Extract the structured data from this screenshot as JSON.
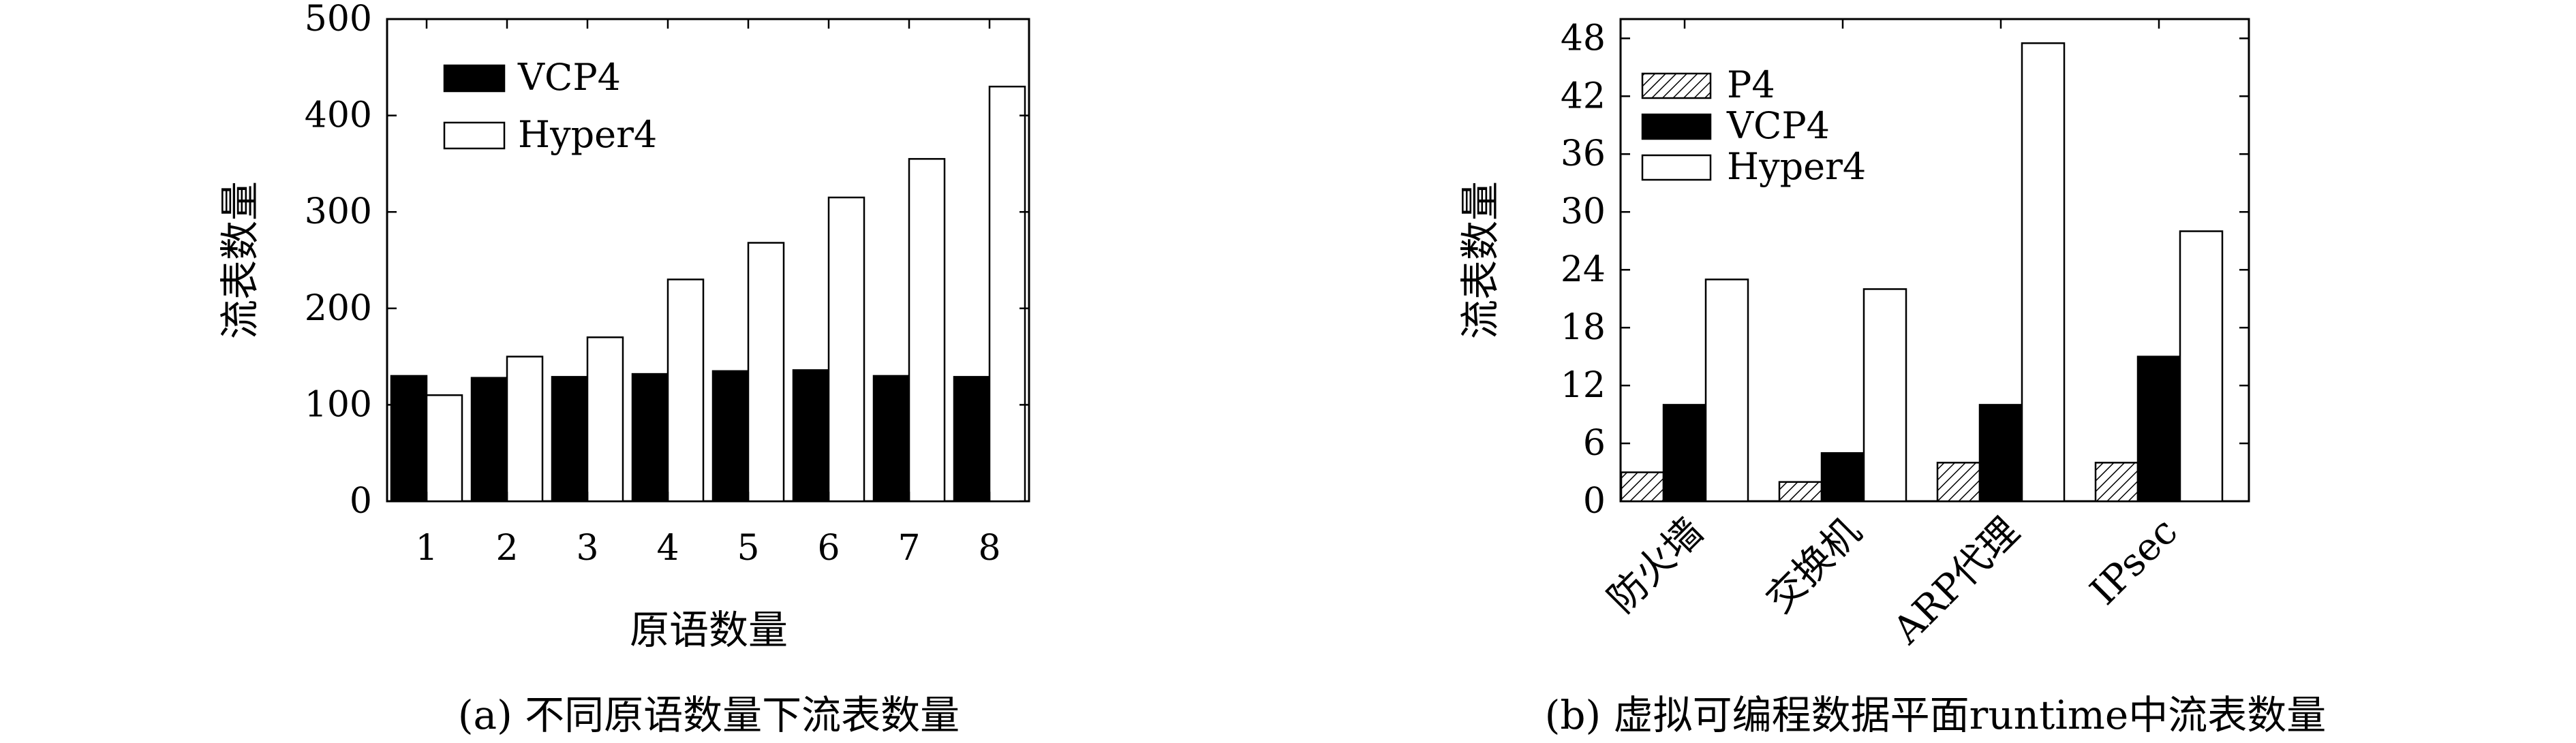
{
  "chart_data": [
    {
      "type": "bar",
      "caption": "(a) 不同原语数量下流表数量",
      "xlabel": "原语数量",
      "ylabel": "流表数量",
      "categories": [
        "1",
        "2",
        "3",
        "4",
        "5",
        "6",
        "7",
        "8"
      ],
      "ylim": [
        0,
        500
      ],
      "yticks": [
        0,
        100,
        200,
        300,
        400,
        500
      ],
      "legend_position": "top-left",
      "series": [
        {
          "name": "VCP4",
          "fill": "#000000",
          "pattern": "solid",
          "values": [
            130,
            128,
            129,
            132,
            135,
            136,
            130,
            129
          ]
        },
        {
          "name": "Hyper4",
          "fill": "#ffffff",
          "pattern": "solid",
          "values": [
            110,
            150,
            170,
            230,
            268,
            315,
            355,
            430
          ]
        }
      ]
    },
    {
      "type": "bar",
      "caption": "(b) 虚拟可编程数据平面runtime中流表数量",
      "xlabel": "",
      "ylabel": "流表数量",
      "categories": [
        "防火墙",
        "交换机",
        "ARP代理",
        "IPsec"
      ],
      "ylim": [
        0,
        50
      ],
      "yticks": [
        0,
        6,
        12,
        18,
        24,
        30,
        36,
        42,
        48
      ],
      "legend_position": "top-left",
      "series": [
        {
          "name": "P4",
          "fill": "#ffffff",
          "pattern": "hatch",
          "values": [
            3,
            2,
            4,
            4
          ]
        },
        {
          "name": "VCP4",
          "fill": "#000000",
          "pattern": "solid",
          "values": [
            10,
            5,
            10,
            15
          ]
        },
        {
          "name": "Hyper4",
          "fill": "#ffffff",
          "pattern": "solid",
          "values": [
            23,
            22,
            47.5,
            28
          ]
        }
      ]
    }
  ]
}
